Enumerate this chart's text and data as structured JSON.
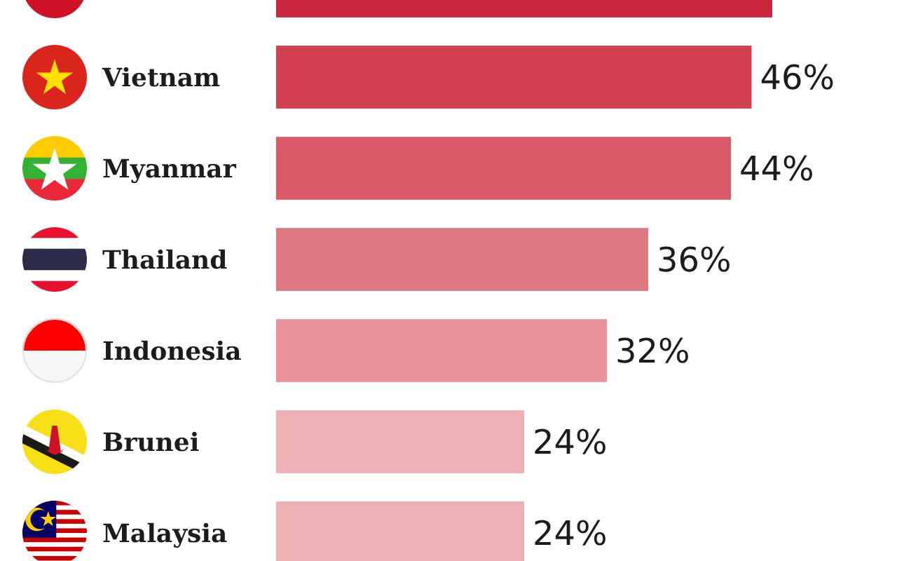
{
  "chart_data": {
    "type": "bar",
    "orientation": "horizontal",
    "categories": [
      null,
      "Vietnam",
      "Myanmar",
      "Thailand",
      "Indonesia",
      "Brunei",
      "Malaysia"
    ],
    "values": [
      48,
      46,
      44,
      36,
      32,
      24,
      24
    ],
    "colors": [
      "#c9263d",
      "#d1414f",
      "#d95b68",
      "#e07882",
      "#e8929b",
      "#edb0b5",
      "#edb0b5"
    ],
    "value_labels": [
      null,
      "46%",
      "44%",
      "36%",
      "32%",
      "24%",
      "24%"
    ]
  }
}
